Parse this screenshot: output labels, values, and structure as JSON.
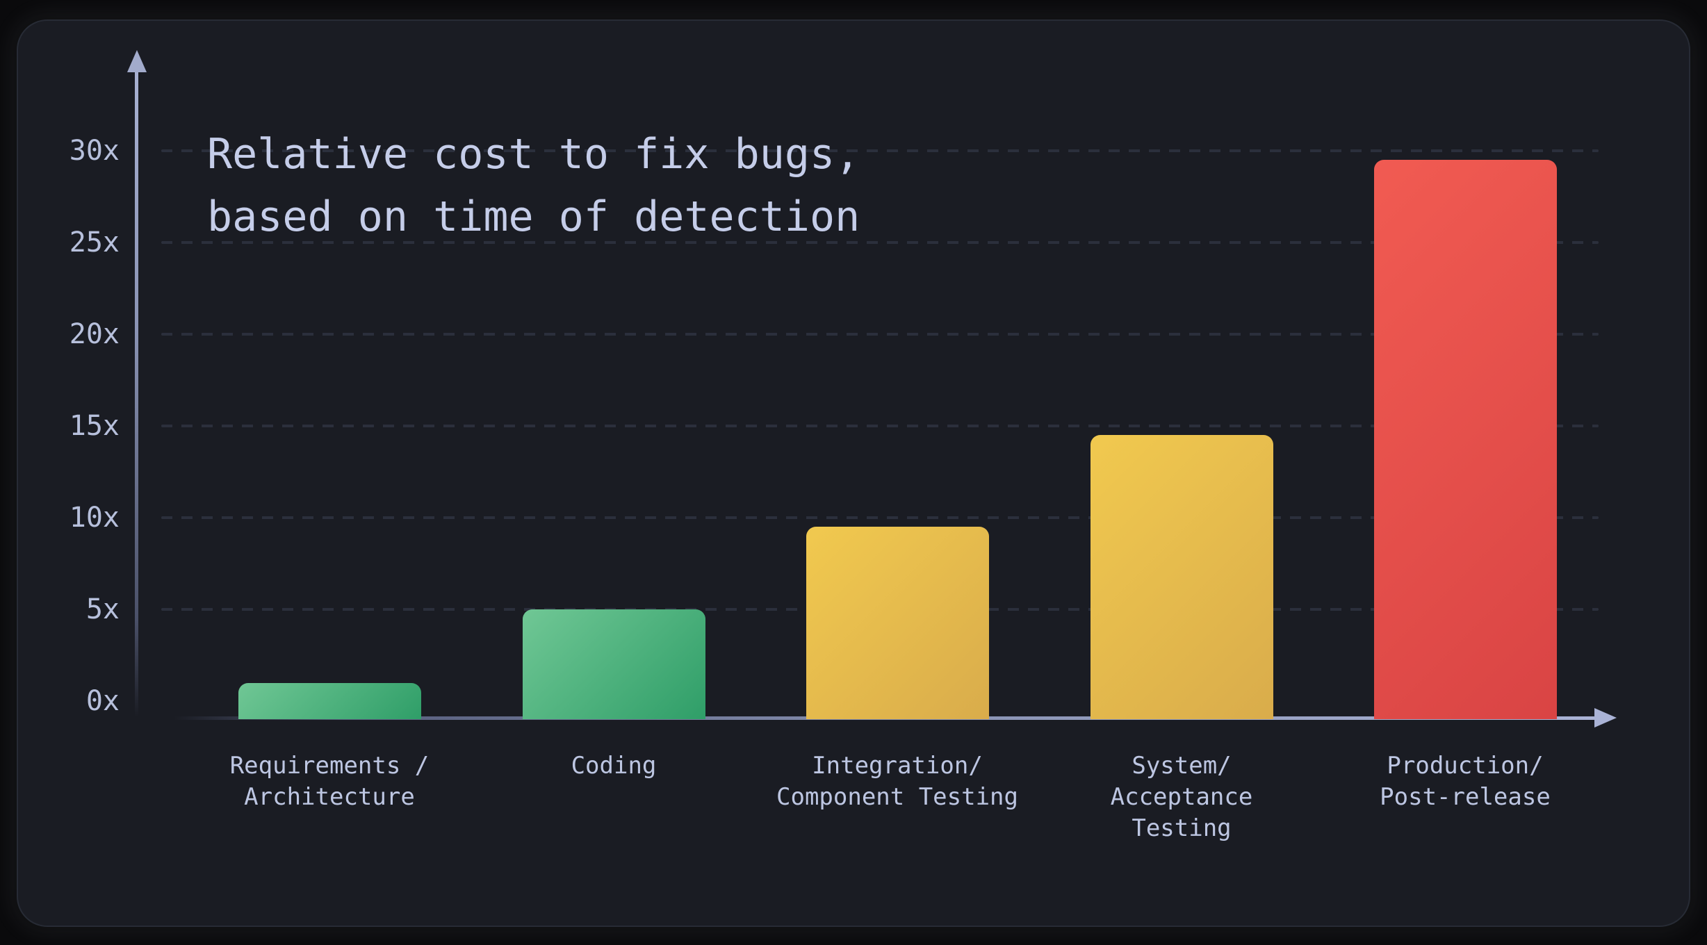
{
  "chart_data": {
    "type": "bar",
    "title": "Relative cost to fix bugs,\nbased on time of detection",
    "categories": [
      "Requirements /\nArchitecture",
      "Coding",
      "Integration/\nComponent Testing",
      "System/\nAcceptance\nTesting",
      "Production/\nPost-release"
    ],
    "values": [
      1,
      5,
      9.5,
      14.5,
      29.5
    ],
    "nominal_values": [
      1,
      5,
      10,
      15,
      30
    ],
    "unit_suffix": "x",
    "xlabel": "",
    "ylabel": "",
    "yticks": [
      {
        "label": "0x",
        "value": 0
      },
      {
        "label": "5x",
        "value": 5
      },
      {
        "label": "10x",
        "value": 10
      },
      {
        "label": "15x",
        "value": 15
      },
      {
        "label": "20x",
        "value": 20
      },
      {
        "label": "25x",
        "value": 25
      },
      {
        "label": "30x",
        "value": 30
      }
    ],
    "ylim": [
      0,
      32
    ],
    "legend": "none",
    "grid": "horizontal dashed lines at 5x steps, none at 0x",
    "layout_hints": "dark rounded card, y-axis arrow up, x-axis arrow right, bars with rounded tops",
    "bar_gradients": [
      {
        "from": "#70c795",
        "to": "#2f9e68"
      },
      {
        "from": "#70c795",
        "to": "#2f9e68"
      },
      {
        "from": "#f1c94f",
        "to": "#d9ac4b"
      },
      {
        "from": "#f1c94f",
        "to": "#d9ac4b"
      },
      {
        "from": "#f15b52",
        "to": "#d94444"
      }
    ]
  },
  "colors": {
    "page_background": "#0a0a0c",
    "card_background": "#1a1c23",
    "card_border": "#313642",
    "grid_dash": "#2b2f3c",
    "axis_light": "#aab3d6",
    "axis_dim": "#4a5068",
    "tick_text": "#b7c0dc",
    "category_text": "#bdc6e2",
    "title_text": "#c5cde9",
    "green": "#3fae74",
    "yellow": "#e6bc4e",
    "red": "#e04c4c"
  }
}
